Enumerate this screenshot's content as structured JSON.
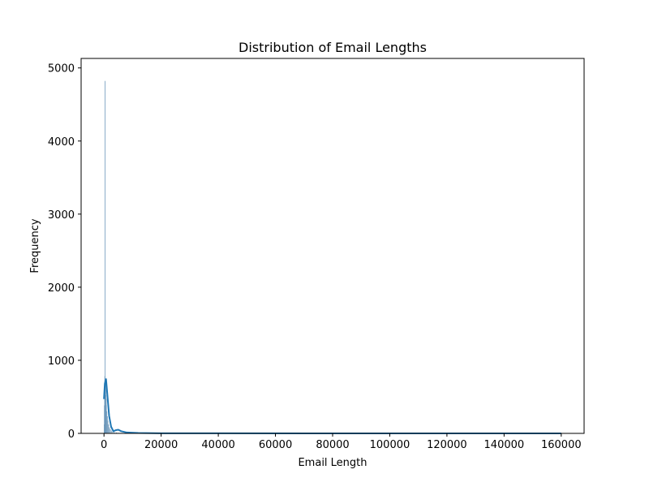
{
  "chart_data": {
    "type": "histogram",
    "title": "Distribution of Email Lengths",
    "xlabel": "Email Length",
    "ylabel": "Frequency",
    "xlim": [
      -8000,
      168000
    ],
    "ylim": [
      0,
      5130
    ],
    "xticks": [
      0,
      20000,
      40000,
      60000,
      80000,
      100000,
      120000,
      140000,
      160000
    ],
    "yticks": [
      0,
      1000,
      2000,
      3000,
      4000,
      5000
    ],
    "grid": false,
    "legend": "none",
    "colors": {
      "bar_fill": "#9fb9cf",
      "bar_edge": "#5f8fb5",
      "kde_line": "#1f77b4"
    },
    "histogram_bins": {
      "x": [
        0,
        75,
        150,
        225,
        300,
        375,
        450,
        525,
        600,
        675,
        750,
        900,
        1100,
        1300,
        1500,
        1800,
        2100,
        2500,
        3000,
        3600,
        4300,
        5000,
        6000
      ],
      "values": [
        120,
        380,
        640,
        780,
        4820,
        720,
        690,
        650,
        520,
        470,
        380,
        300,
        230,
        170,
        120,
        80,
        55,
        35,
        25,
        15,
        10,
        5,
        0
      ],
      "bin_width": 75
    },
    "kde": {
      "x": [
        0,
        300,
        700,
        1200,
        1800,
        2500,
        3300,
        4200,
        5000,
        6000,
        8000,
        12000,
        20000,
        40000,
        80000,
        120000,
        160000
      ],
      "y": [
        470,
        680,
        750,
        520,
        240,
        90,
        30,
        45,
        50,
        30,
        12,
        5,
        2,
        1,
        0,
        0,
        0
      ]
    }
  }
}
